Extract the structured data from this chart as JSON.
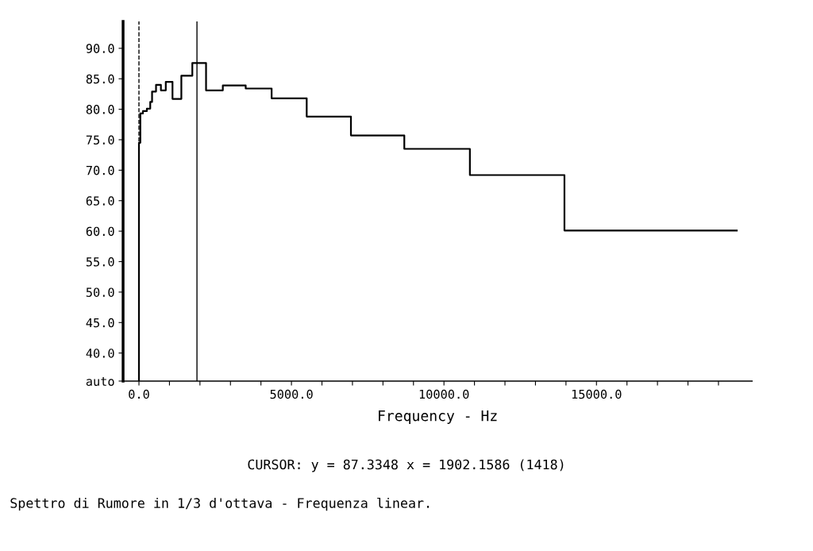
{
  "chart_data": {
    "type": "step",
    "xlabel": "Frequency - Hz",
    "x": [
      0,
      0,
      45,
      130,
      260,
      370,
      430,
      560,
      720,
      880,
      1100,
      1390,
      1750,
      2200,
      2750,
      3500,
      4350,
      5500,
      6950,
      8700,
      10850,
      13950,
      19600
    ],
    "series": [
      {
        "color": "#000000",
        "values": [
          35.4,
          74.5,
          79.3,
          79.7,
          80.1,
          81.2,
          82.9,
          84.0,
          83.1,
          84.5,
          81.7,
          85.5,
          87.6,
          83.1,
          83.9,
          83.4,
          81.8,
          78.8,
          75.7,
          73.5,
          69.2,
          60.1,
          60.1
        ]
      }
    ],
    "xlim": [
      -520,
      20100
    ],
    "ylim": [
      35.4,
      94.4
    ],
    "xticks": [
      {
        "value": 0,
        "label": "0.0"
      },
      {
        "value": 1000,
        "label": null
      },
      {
        "value": 2000,
        "label": null
      },
      {
        "value": 3000,
        "label": null
      },
      {
        "value": 4000,
        "label": null
      },
      {
        "value": 5000,
        "label": "5000.0"
      },
      {
        "value": 6000,
        "label": null
      },
      {
        "value": 7000,
        "label": null
      },
      {
        "value": 8000,
        "label": null
      },
      {
        "value": 9000,
        "label": null
      },
      {
        "value": 10000,
        "label": "10000.0"
      },
      {
        "value": 11000,
        "label": null
      },
      {
        "value": 12000,
        "label": null
      },
      {
        "value": 13000,
        "label": null
      },
      {
        "value": 14000,
        "label": null
      },
      {
        "value": 15000,
        "label": "15000.0"
      },
      {
        "value": 16000,
        "label": null
      },
      {
        "value": 17000,
        "label": null
      },
      {
        "value": 18000,
        "label": null
      },
      {
        "value": 19000,
        "label": null
      }
    ],
    "yticks": [
      {
        "value": 35.4,
        "label": "auto"
      },
      {
        "value": 40,
        "label": "40.0"
      },
      {
        "value": 45,
        "label": "45.0"
      },
      {
        "value": 50,
        "label": "50.0"
      },
      {
        "value": 55,
        "label": "55.0"
      },
      {
        "value": 60,
        "label": "60.0"
      },
      {
        "value": 65,
        "label": "65.0"
      },
      {
        "value": 70,
        "label": "70.0"
      },
      {
        "value": 75,
        "label": "75.0"
      },
      {
        "value": 80,
        "label": "80.0"
      },
      {
        "value": 85,
        "label": "85.0"
      },
      {
        "value": 90,
        "label": "90.0"
      }
    ],
    "ref_lines": [
      {
        "axis": "x",
        "value": 0,
        "color": "#000000",
        "line_style": "dashed"
      },
      {
        "axis": "x",
        "value": 1902.1586,
        "color": "#000000",
        "line_style": "solid"
      }
    ],
    "annotations": [
      "CURSOR: y = 87.3348 x = 1902.1586 (1418)",
      "Spettro di Rumore in 1/3 d'ottava - Frequenza linear."
    ],
    "grid": false,
    "legend": false
  }
}
